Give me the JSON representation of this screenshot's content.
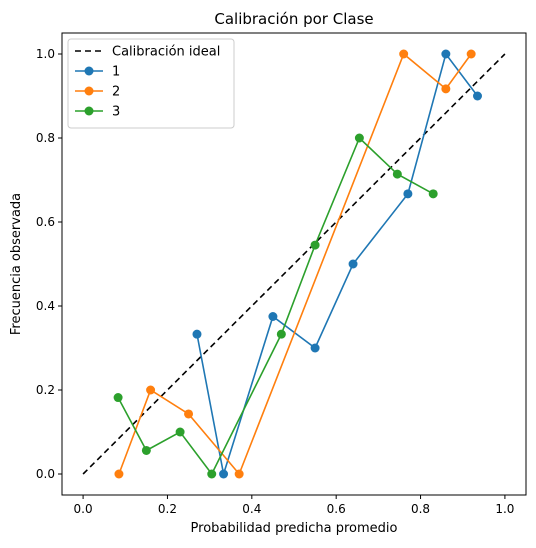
{
  "chart_data": {
    "type": "line",
    "title": "Calibración por Clase",
    "xlabel": "Probabilidad predicha promedio",
    "ylabel": "Frecuencia observada",
    "xlim": [
      -0.05,
      1.05
    ],
    "ylim": [
      -0.05,
      1.05
    ],
    "xticks": [
      "0.0",
      "0.2",
      "0.4",
      "0.6",
      "0.8",
      "1.0"
    ],
    "yticks": [
      "0.0",
      "0.2",
      "0.4",
      "0.6",
      "0.8",
      "1.0"
    ],
    "grid": false,
    "legend_position": "top-left",
    "reference_line": {
      "name": "Calibración ideal",
      "x": [
        0,
        1
      ],
      "y": [
        0,
        1
      ],
      "color": "#000000",
      "style": "dashed"
    },
    "series": [
      {
        "name": "1",
        "color": "#1f77b4",
        "x": [
          0.27,
          0.333,
          0.45,
          0.55,
          0.64,
          0.77,
          0.86,
          0.935
        ],
        "y": [
          0.333,
          0.0,
          0.375,
          0.3,
          0.5,
          0.667,
          1.0,
          0.9
        ]
      },
      {
        "name": "2",
        "color": "#ff7f0e",
        "x": [
          0.085,
          0.16,
          0.25,
          0.37,
          0.76,
          0.86,
          0.92
        ],
        "y": [
          0.0,
          0.2,
          0.143,
          0.0,
          1.0,
          0.917,
          1.0
        ]
      },
      {
        "name": "3",
        "color": "#2ca02c",
        "x": [
          0.083,
          0.15,
          0.23,
          0.305,
          0.47,
          0.55,
          0.655,
          0.745,
          0.83
        ],
        "y": [
          0.182,
          0.056,
          0.1,
          0.0,
          0.333,
          0.545,
          0.8,
          0.714,
          0.667
        ]
      }
    ]
  }
}
